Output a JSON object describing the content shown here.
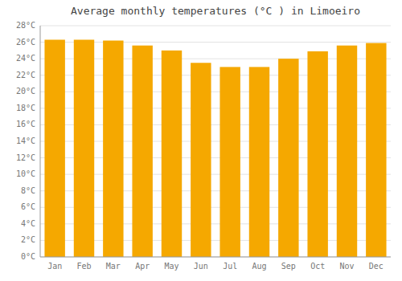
{
  "chart_data": {
    "type": "bar",
    "title": "Average monthly temperatures (°C ) in Limoeiro",
    "categories": [
      "Jan",
      "Feb",
      "Mar",
      "Apr",
      "May",
      "Jun",
      "Jul",
      "Aug",
      "Sep",
      "Oct",
      "Nov",
      "Dec"
    ],
    "values": [
      26.3,
      26.3,
      26.2,
      25.6,
      25.0,
      23.5,
      23.0,
      23.0,
      24.0,
      24.9,
      25.6,
      25.9
    ],
    "color": "#F5A800",
    "ylim": [
      0,
      28
    ],
    "yticks": [
      {
        "value": 0,
        "label": "0°C"
      },
      {
        "value": 2,
        "label": "2°C"
      },
      {
        "value": 4,
        "label": "4°C"
      },
      {
        "value": 6,
        "label": "6°C"
      },
      {
        "value": 8,
        "label": "8°C"
      },
      {
        "value": 10,
        "label": "10°C"
      },
      {
        "value": 12,
        "label": "12°C"
      },
      {
        "value": 14,
        "label": "14°C"
      },
      {
        "value": 16,
        "label": "16°C"
      },
      {
        "value": 18,
        "label": "18°C"
      },
      {
        "value": 20,
        "label": "20°C"
      },
      {
        "value": 22,
        "label": "22°C"
      },
      {
        "value": 24,
        "label": "24°C"
      },
      {
        "value": 26,
        "label": "26°C"
      },
      {
        "value": 28,
        "label": "28°C"
      }
    ],
    "grid": true
  }
}
